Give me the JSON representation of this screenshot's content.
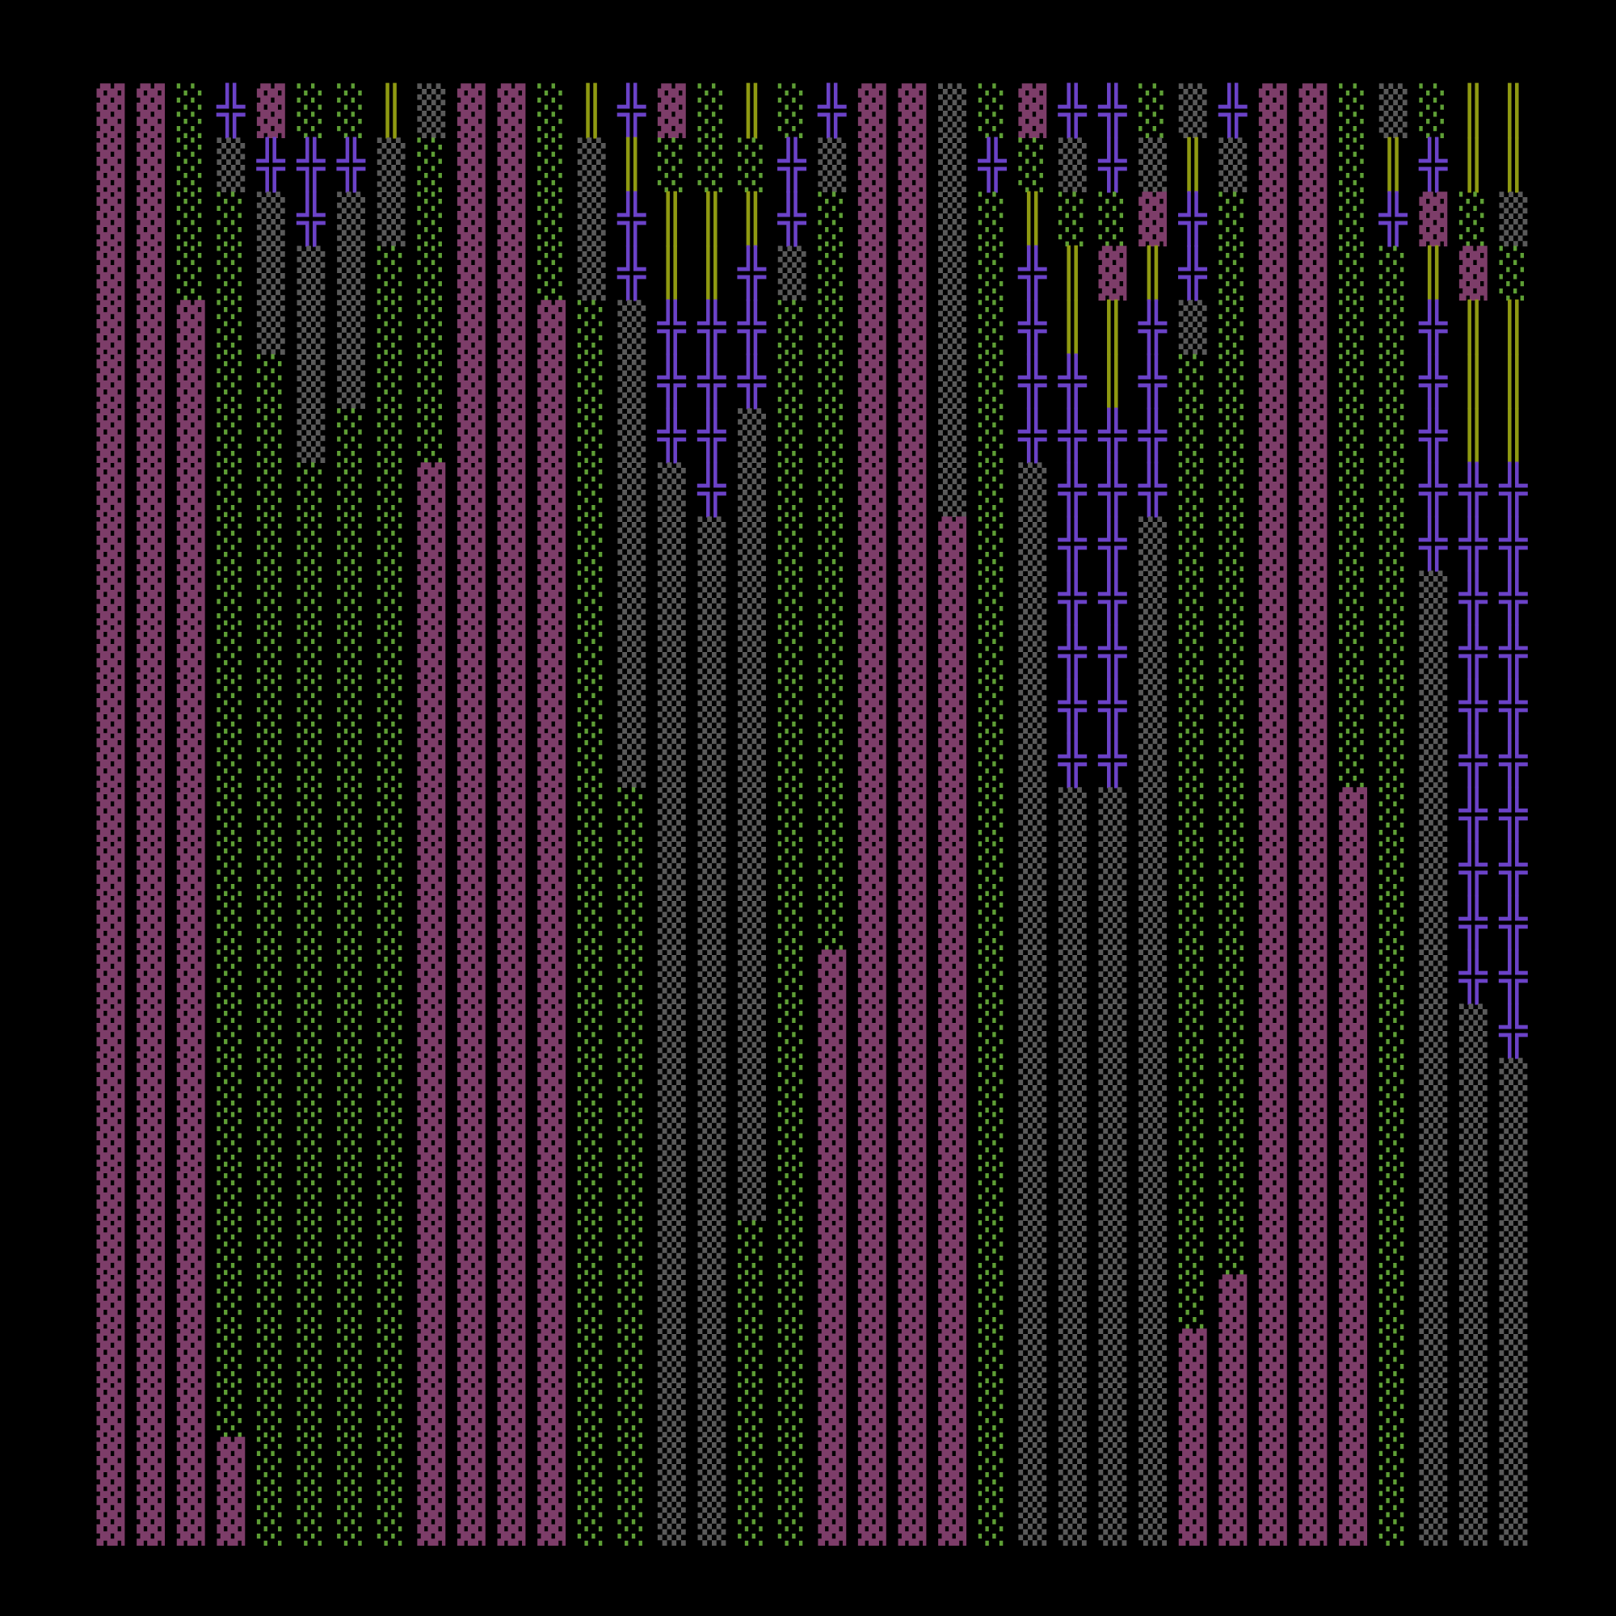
{
  "palette": {
    "▓": "#7d3d69",
    "░": "#5e9f35",
    "▒": "#5a5a5a",
    "╬": "#6b42c8",
    "║": "#8f9a12"
  },
  "grid": {
    "columns": [
      [
        "▓",
        "▓",
        "▓",
        "▓",
        "▓",
        "▓",
        "▓",
        "▓",
        "▓",
        "▓",
        "▓",
        "▓",
        "▓",
        "▓",
        "▓",
        "▓",
        "▓",
        "▓",
        "▓",
        "▓",
        "▓",
        "▓",
        "▓",
        "▓",
        "▓",
        "▓",
        "▓"
      ],
      [
        "▓",
        "▓",
        "▓",
        "▓",
        "▓",
        "▓",
        "▓",
        "▓",
        "▓",
        "▓",
        "▓",
        "▓",
        "▓",
        "▓",
        "▓",
        "▓",
        "▓",
        "▓",
        "▓",
        "▓",
        "▓",
        "▓",
        "▓",
        "▓",
        "▓",
        "▓",
        "▓"
      ],
      [
        "░",
        "░",
        "░",
        "░",
        "▓",
        "▓",
        "▓",
        "▓",
        "▓",
        "▓",
        "▓",
        "▓",
        "▓",
        "▓",
        "▓",
        "▓",
        "▓",
        "▓",
        "▓",
        "▓",
        "▓",
        "▓",
        "▓",
        "▓",
        "▓",
        "▓",
        "▓"
      ],
      [
        "╬",
        "▒",
        "░",
        "░",
        "░",
        "░",
        "░",
        "░",
        "░",
        "░",
        "░",
        "░",
        "░",
        "░",
        "░",
        "░",
        "░",
        "░",
        "░",
        "░",
        "░",
        "░",
        "░",
        "░",
        "░",
        "▓",
        "▓"
      ],
      [
        "▓",
        "╬",
        "▒",
        "▒",
        "▒",
        "░",
        "░",
        "░",
        "░",
        "░",
        "░",
        "░",
        "░",
        "░",
        "░",
        "░",
        "░",
        "░",
        "░",
        "░",
        "░",
        "░",
        "░",
        "░",
        "░",
        "░",
        "░"
      ],
      [
        "░",
        "╬",
        "╬",
        "▒",
        "▒",
        "▒",
        "▒",
        "░",
        "░",
        "░",
        "░",
        "░",
        "░",
        "░",
        "░",
        "░",
        "░",
        "░",
        "░",
        "░",
        "░",
        "░",
        "░",
        "░",
        "░",
        "░",
        "░"
      ],
      [
        "░",
        "╬",
        "▒",
        "▒",
        "▒",
        "▒",
        "░",
        "░",
        "░",
        "░",
        "░",
        "░",
        "░",
        "░",
        "░",
        "░",
        "░",
        "░",
        "░",
        "░",
        "░",
        "░",
        "░",
        "░",
        "░",
        "░",
        "░"
      ],
      [
        "║",
        "▒",
        "▒",
        "░",
        "░",
        "░",
        "░",
        "░",
        "░",
        "░",
        "░",
        "░",
        "░",
        "░",
        "░",
        "░",
        "░",
        "░",
        "░",
        "░",
        "░",
        "░",
        "░",
        "░",
        "░",
        "░",
        "░"
      ],
      [
        "▒",
        "░",
        "░",
        "░",
        "░",
        "░",
        "░",
        "▓",
        "▓",
        "▓",
        "▓",
        "▓",
        "▓",
        "▓",
        "▓",
        "▓",
        "▓",
        "▓",
        "▓",
        "▓",
        "▓",
        "▓",
        "▓",
        "▓",
        "▓",
        "▓",
        "▓"
      ],
      [
        "▓",
        "▓",
        "▓",
        "▓",
        "▓",
        "▓",
        "▓",
        "▓",
        "▓",
        "▓",
        "▓",
        "▓",
        "▓",
        "▓",
        "▓",
        "▓",
        "▓",
        "▓",
        "▓",
        "▓",
        "▓",
        "▓",
        "▓",
        "▓",
        "▓",
        "▓",
        "▓"
      ],
      [
        "▓",
        "▓",
        "▓",
        "▓",
        "▓",
        "▓",
        "▓",
        "▓",
        "▓",
        "▓",
        "▓",
        "▓",
        "▓",
        "▓",
        "▓",
        "▓",
        "▓",
        "▓",
        "▓",
        "▓",
        "▓",
        "▓",
        "▓",
        "▓",
        "▓",
        "▓",
        "▓"
      ],
      [
        "░",
        "░",
        "░",
        "░",
        "▓",
        "▓",
        "▓",
        "▓",
        "▓",
        "▓",
        "▓",
        "▓",
        "▓",
        "▓",
        "▓",
        "▓",
        "▓",
        "▓",
        "▓",
        "▓",
        "▓",
        "▓",
        "▓",
        "▓",
        "▓",
        "▓",
        "▓"
      ],
      [
        "║",
        "▒",
        "▒",
        "▒",
        "░",
        "░",
        "░",
        "░",
        "░",
        "░",
        "░",
        "░",
        "░",
        "░",
        "░",
        "░",
        "░",
        "░",
        "░",
        "░",
        "░",
        "░",
        "░",
        "░",
        "░",
        "░",
        "░"
      ],
      [
        "╬",
        "║",
        "╬",
        "╬",
        "▒",
        "▒",
        "▒",
        "▒",
        "▒",
        "▒",
        "▒",
        "▒",
        "▒",
        "░",
        "░",
        "░",
        "░",
        "░",
        "░",
        "░",
        "░",
        "░",
        "░",
        "░",
        "░",
        "░",
        "░"
      ],
      [
        "▓",
        "░",
        "║",
        "║",
        "╬",
        "╬",
        "╬",
        "▒",
        "▒",
        "▒",
        "▒",
        "▒",
        "▒",
        "▒",
        "▒",
        "▒",
        "▒",
        "▒",
        "▒",
        "▒",
        "▒",
        "▒",
        "▒",
        "▒",
        "▒",
        "▒",
        "▒"
      ],
      [
        "░",
        "░",
        "║",
        "║",
        "╬",
        "╬",
        "╬",
        "╬",
        "▒",
        "▒",
        "▒",
        "▒",
        "▒",
        "▒",
        "▒",
        "▒",
        "▒",
        "▒",
        "▒",
        "▒",
        "▒",
        "▒",
        "▒",
        "▒",
        "▒",
        "▒",
        "▒"
      ],
      [
        "║",
        "░",
        "║",
        "╬",
        "╬",
        "╬",
        "▒",
        "▒",
        "▒",
        "▒",
        "▒",
        "▒",
        "▒",
        "▒",
        "▒",
        "▒",
        "▒",
        "▒",
        "▒",
        "▒",
        "▒",
        "░",
        "░",
        "░",
        "░",
        "░",
        "░"
      ],
      [
        "░",
        "╬",
        "╬",
        "▒",
        "░",
        "░",
        "░",
        "░",
        "░",
        "░",
        "░",
        "░",
        "░",
        "░",
        "░",
        "░",
        "░",
        "░",
        "░",
        "░",
        "░",
        "░",
        "░",
        "░",
        "░",
        "░",
        "░"
      ],
      [
        "╬",
        "▒",
        "░",
        "░",
        "░",
        "░",
        "░",
        "░",
        "░",
        "░",
        "░",
        "░",
        "░",
        "░",
        "░",
        "░",
        "▓",
        "▓",
        "▓",
        "▓",
        "▓",
        "▓",
        "▓",
        "▓",
        "▓",
        "▓",
        "▓"
      ],
      [
        "▓",
        "▓",
        "▓",
        "▓",
        "▓",
        "▓",
        "▓",
        "▓",
        "▓",
        "▓",
        "▓",
        "▓",
        "▓",
        "▓",
        "▓",
        "▓",
        "▓",
        "▓",
        "▓",
        "▓",
        "▓",
        "▓",
        "▓",
        "▓",
        "▓",
        "▓",
        "▓"
      ],
      [
        "▓",
        "▓",
        "▓",
        "▓",
        "▓",
        "▓",
        "▓",
        "▓",
        "▓",
        "▓",
        "▓",
        "▓",
        "▓",
        "▓",
        "▓",
        "▓",
        "▓",
        "▓",
        "▓",
        "▓",
        "▓",
        "▓",
        "▓",
        "▓",
        "▓",
        "▓",
        "▓"
      ],
      [
        "▒",
        "▒",
        "▒",
        "▒",
        "▒",
        "▒",
        "▒",
        "▒",
        "▓",
        "▓",
        "▓",
        "▓",
        "▓",
        "▓",
        "▓",
        "▓",
        "▓",
        "▓",
        "▓",
        "▓",
        "▓",
        "▓",
        "▓",
        "▓",
        "▓",
        "▓",
        "▓"
      ],
      [
        "░",
        "╬",
        "░",
        "░",
        "░",
        "░",
        "░",
        "░",
        "░",
        "░",
        "░",
        "░",
        "░",
        "░",
        "░",
        "░",
        "░",
        "░",
        "░",
        "░",
        "░",
        "░",
        "░",
        "░",
        "░",
        "░",
        "░"
      ],
      [
        "▓",
        "░",
        "║",
        "╬",
        "╬",
        "╬",
        "╬",
        "▒",
        "▒",
        "▒",
        "▒",
        "▒",
        "▒",
        "▒",
        "▒",
        "▒",
        "▒",
        "▒",
        "▒",
        "▒",
        "▒",
        "▒",
        "▒",
        "▒",
        "▒",
        "▒",
        "▒"
      ],
      [
        "╬",
        "▒",
        "░",
        "║",
        "║",
        "╬",
        "╬",
        "╬",
        "╬",
        "╬",
        "╬",
        "╬",
        "╬",
        "▒",
        "▒",
        "▒",
        "▒",
        "▒",
        "▒",
        "▒",
        "▒",
        "▒",
        "▒",
        "▒",
        "▒",
        "▒",
        "▒"
      ],
      [
        "╬",
        "╬",
        "░",
        "▓",
        "║",
        "║",
        "╬",
        "╬",
        "╬",
        "╬",
        "╬",
        "╬",
        "╬",
        "▒",
        "▒",
        "▒",
        "▒",
        "▒",
        "▒",
        "▒",
        "▒",
        "▒",
        "▒",
        "▒",
        "▒",
        "▒",
        "▒"
      ],
      [
        "░",
        "▒",
        "▓",
        "║",
        "╬",
        "╬",
        "╬",
        "╬",
        "▒",
        "▒",
        "▒",
        "▒",
        "▒",
        "▒",
        "▒",
        "▒",
        "▒",
        "▒",
        "▒",
        "▒",
        "▒",
        "▒",
        "▒",
        "▒",
        "▒",
        "▒",
        "▒"
      ],
      [
        "▒",
        "║",
        "╬",
        "╬",
        "▒",
        "░",
        "░",
        "░",
        "░",
        "░",
        "░",
        "░",
        "░",
        "░",
        "░",
        "░",
        "░",
        "░",
        "░",
        "░",
        "░",
        "░",
        "░",
        "▓",
        "▓",
        "▓",
        "▓"
      ],
      [
        "╬",
        "▒",
        "░",
        "░",
        "░",
        "░",
        "░",
        "░",
        "░",
        "░",
        "░",
        "░",
        "░",
        "░",
        "░",
        "░",
        "░",
        "░",
        "░",
        "░",
        "░",
        "░",
        "▓",
        "▓",
        "▓",
        "▓",
        "▓"
      ],
      [
        "▓",
        "▓",
        "▓",
        "▓",
        "▓",
        "▓",
        "▓",
        "▓",
        "▓",
        "▓",
        "▓",
        "▓",
        "▓",
        "▓",
        "▓",
        "▓",
        "▓",
        "▓",
        "▓",
        "▓",
        "▓",
        "▓",
        "▓",
        "▓",
        "▓",
        "▓",
        "▓"
      ],
      [
        "▓",
        "▓",
        "▓",
        "▓",
        "▓",
        "▓",
        "▓",
        "▓",
        "▓",
        "▓",
        "▓",
        "▓",
        "▓",
        "▓",
        "▓",
        "▓",
        "▓",
        "▓",
        "▓",
        "▓",
        "▓",
        "▓",
        "▓",
        "▓",
        "▓",
        "▓",
        "▓"
      ],
      [
        "░",
        "░",
        "░",
        "░",
        "░",
        "░",
        "░",
        "░",
        "░",
        "░",
        "░",
        "░",
        "░",
        "▓",
        "▓",
        "▓",
        "▓",
        "▓",
        "▓",
        "▓",
        "▓",
        "▓",
        "▓",
        "▓",
        "▓",
        "▓",
        "▓"
      ],
      [
        "▒",
        "║",
        "╬",
        "░",
        "░",
        "░",
        "░",
        "░",
        "░",
        "░",
        "░",
        "░",
        "░",
        "░",
        "░",
        "░",
        "░",
        "░",
        "░",
        "░",
        "░",
        "░",
        "░",
        "░",
        "░",
        "░",
        "░"
      ],
      [
        "░",
        "╬",
        "▓",
        "║",
        "╬",
        "╬",
        "╬",
        "╬",
        "╬",
        "▒",
        "▒",
        "▒",
        "▒",
        "▒",
        "▒",
        "▒",
        "▒",
        "▒",
        "▒",
        "▒",
        "▒",
        "▒",
        "▒",
        "▒",
        "▒",
        "▒",
        "▒"
      ],
      [
        "║",
        "║",
        "░",
        "▓",
        "║",
        "║",
        "║",
        "╬",
        "╬",
        "╬",
        "╬",
        "╬",
        "╬",
        "╬",
        "╬",
        "╬",
        "╬",
        "▒",
        "▒",
        "▒",
        "▒",
        "▒",
        "▒",
        "▒",
        "▒",
        "▒",
        "▒"
      ],
      [
        "║",
        "║",
        "▒",
        "░",
        "║",
        "║",
        "║",
        "╬",
        "╬",
        "╬",
        "╬",
        "╬",
        "╬",
        "╬",
        "╬",
        "╬",
        "╬",
        "╬",
        "▒",
        "▒",
        "▒",
        "▒",
        "▒",
        "▒",
        "▒",
        "▒",
        "▒"
      ]
    ]
  }
}
